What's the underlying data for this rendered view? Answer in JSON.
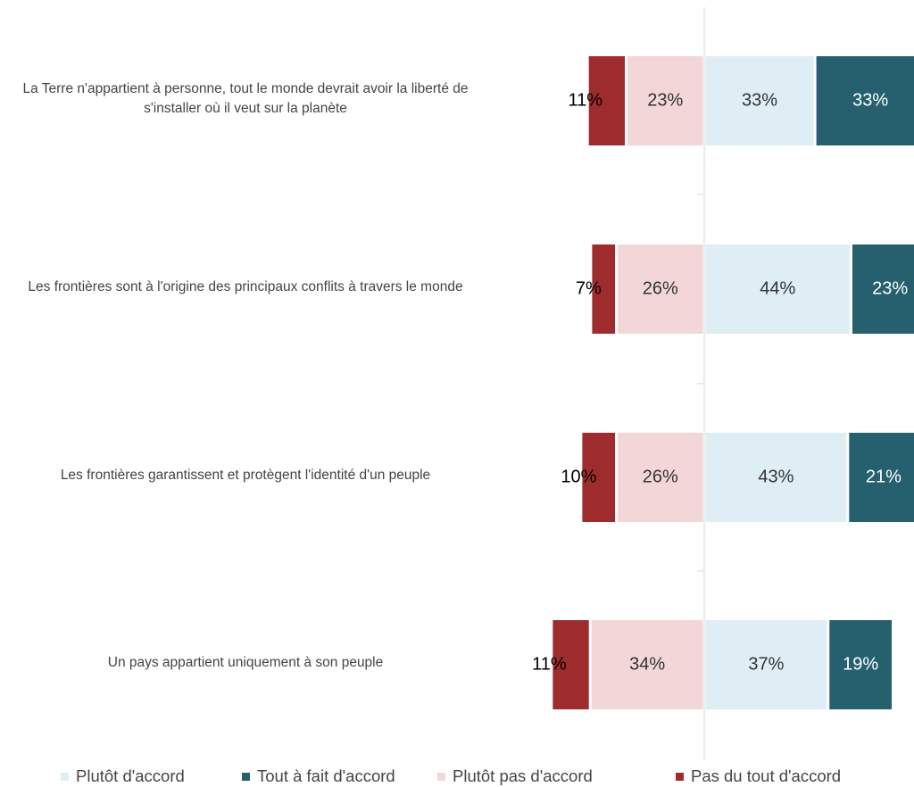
{
  "chart_data": {
    "type": "diverging_bar",
    "categories": [
      "La Terre n'appartient à personne, tout le monde devrait avoir la liberté de s'installer où il veut sur la planète",
      "Les frontières sont à l'origine des principaux conflits à travers le monde",
      "Les frontières garantissent et protègent l'identité d'un peuple",
      "Un pays appartient uniquement à son peuple"
    ],
    "series": [
      {
        "name": "Plutôt d'accord",
        "color": "#deeef4",
        "side": "right",
        "values": [
          33,
          44,
          43,
          37
        ],
        "value_labels": [
          "33%",
          "44%",
          "43%",
          "37%"
        ]
      },
      {
        "name": "Tout à fait d'accord",
        "color": "#26606f",
        "side": "right",
        "values": [
          33,
          23,
          21,
          19
        ],
        "value_labels": [
          "33%",
          "23%",
          "21%",
          "19%"
        ]
      },
      {
        "name": "Plutôt pas d'accord",
        "color": "#f3d6d8",
        "side": "left",
        "values": [
          23,
          26,
          26,
          34
        ],
        "value_labels": [
          "23%",
          "26%",
          "26%",
          "34%"
        ]
      },
      {
        "name": "Pas du tout d'accord",
        "color": "#9e2c2f",
        "side": "left",
        "values": [
          11,
          7,
          10,
          11
        ],
        "value_labels": [
          "11%",
          "7%",
          "10%",
          "11%"
        ]
      }
    ]
  }
}
